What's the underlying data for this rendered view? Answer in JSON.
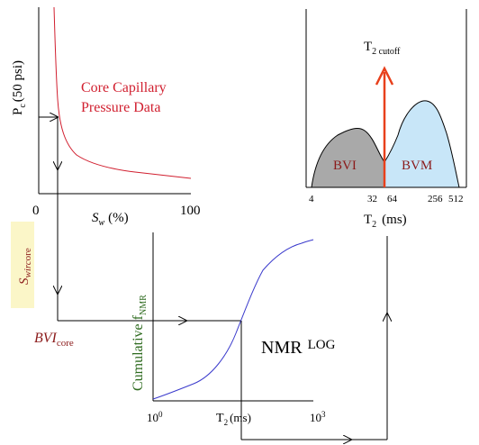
{
  "colors": {
    "curve_red": "#d11f2f",
    "curve_blue": "#3a3acc",
    "bvi_fill": "#a9a9a9",
    "bvm_fill": "#c8e6f8",
    "cutoff_arrow": "#e8401c",
    "highlight_box": "#fbf6c8",
    "dark_red_text": "#8b1a1a",
    "green_text": "#2e6b1f"
  },
  "capillary": {
    "ylabel_main": "P",
    "ylabel_sub": "c",
    "ylabel_rest": "(50 psi)",
    "x_tick_min": "0",
    "x_tick_max": "100",
    "xlabel_main": "S",
    "xlabel_sub": "w",
    "xlabel_rest": "(%)",
    "annotation_line1": "Core Capillary",
    "annotation_line2": "Pressure Data"
  },
  "t2_dist": {
    "cutoff_main": "T",
    "cutoff_sub": "2 cutoff",
    "bvi_label": "BVI",
    "bvm_label": "BVM",
    "ticks": [
      "4",
      "32",
      "64",
      "256",
      "512"
    ],
    "xlabel_main": "T",
    "xlabel_sub": "2",
    "xlabel_rest": "(ms)"
  },
  "swir": {
    "main": "S",
    "sub": "wirc",
    "rest": "ore"
  },
  "bvi_core": {
    "main": "BVI",
    "sub": "core"
  },
  "cumulative": {
    "ylabel_main": "Cumulative f",
    "ylabel_sub": "NMR",
    "x_tick_min": "10",
    "x_tick_min_exp": "0",
    "x_tick_max": "10",
    "x_tick_max_exp": "3",
    "xlabel_main": "T",
    "xlabel_sub": "2",
    "xlabel_rest": "(ms)",
    "nmr_log_main": "NMR",
    "nmr_log_rest": "LOG"
  }
}
